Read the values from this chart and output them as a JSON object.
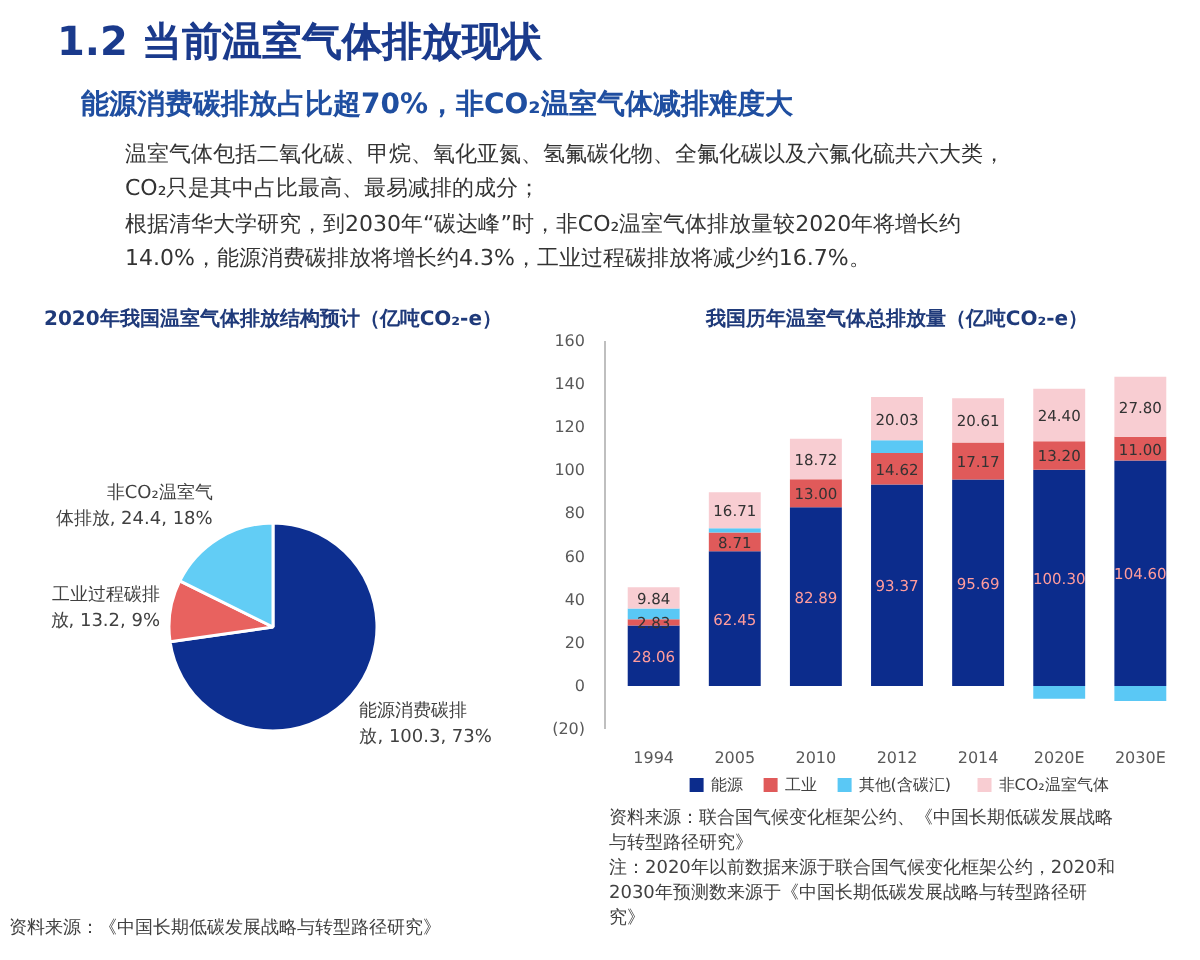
{
  "chart_data": [
    {
      "type": "other",
      "title": "1.2 当前温室气体排放现状",
      "subtitle": "能源消费碳排放占比超70%，非CO₂温室气体减排难度大",
      "annotations": [
        "温室气体包括二氧化碳、甲烷、氧化亚氮、氢氟碳化物、全氟化碳以及六氟化硫共六大类，CO₂只是其中占比最高、最易减排的成分；",
        "根据清华大学研究，到2030年“碳达峰”时，非CO₂温室气体排放量较2020年将增长约14.0%，能源消费碳排放将增长约4.3%，工业过程碳排放将减少约16.7%。"
      ]
    },
    {
      "type": "pie",
      "title": "2020年我国温室气体排放结构预计（亿吨CO₂-e）",
      "categories": [
        "能源消费碳排放",
        "工业过程碳排放",
        "非CO₂温室气体排放"
      ],
      "values": [
        100.3,
        13.2,
        24.4
      ],
      "colors": [
        "#0d2f90",
        "#e8625f",
        "#62cdf5"
      ],
      "value_labels": [
        "100.3, 73%",
        "13.2, 9%",
        "24.4, 18%"
      ],
      "annotations": [
        "资料来源：《中国长期低碳发展战略与转型路径研究》"
      ]
    },
    {
      "type": "bar",
      "stacked": true,
      "title": "我国历年温室气体总排放量（亿吨CO₂-e）",
      "categories": [
        "1994",
        "2005",
        "2010",
        "2012",
        "2014",
        "2020E",
        "2030E"
      ],
      "series": [
        {
          "name": "能源",
          "color": "#0c2c8c",
          "values": [
            28.06,
            62.45,
            82.89,
            93.37,
            95.69,
            100.3,
            104.6
          ],
          "value_labels": [
            "28.06",
            "62.45",
            "82.89",
            "93.37",
            "95.69",
            "100.30",
            "104.60"
          ]
        },
        {
          "name": "工业",
          "color": "#e05a5a",
          "values": [
            2.83,
            8.71,
            13.0,
            14.62,
            17.17,
            13.2,
            11.0
          ],
          "value_labels": [
            "2.83",
            "8.71",
            "13.00",
            "14.62",
            "17.17",
            "13.20",
            "11.00"
          ]
        },
        {
          "name": "其他(含碳汇)",
          "color": "#5ac8f5",
          "values": [
            5,
            2,
            null,
            6,
            null,
            -6,
            -7
          ]
        },
        {
          "name": "非CO₂温室气体",
          "color": "#f8cdd2",
          "values": [
            9.84,
            16.71,
            18.72,
            20.03,
            20.61,
            24.4,
            27.8
          ],
          "value_labels": [
            "9.84",
            "16.71",
            "18.72",
            "20.03",
            "20.61",
            "24.40",
            "27.80"
          ]
        }
      ],
      "ylim": [
        -20,
        160
      ],
      "yticks": [
        {
          "value": -20,
          "label": "(20)"
        },
        0,
        20,
        40,
        60,
        80,
        100,
        120,
        140,
        160
      ],
      "legend": "bottom",
      "annotations": [
        "资料来源：联合国气候变化框架公约、《中国长期低碳发展战略与转型路径研究》",
        "注：2020年以前数据来源于联合国气候变化框架公约，2020和2030年预测数来源于《中国长期低碳发展战略与转型路径研究》"
      ]
    }
  ]
}
